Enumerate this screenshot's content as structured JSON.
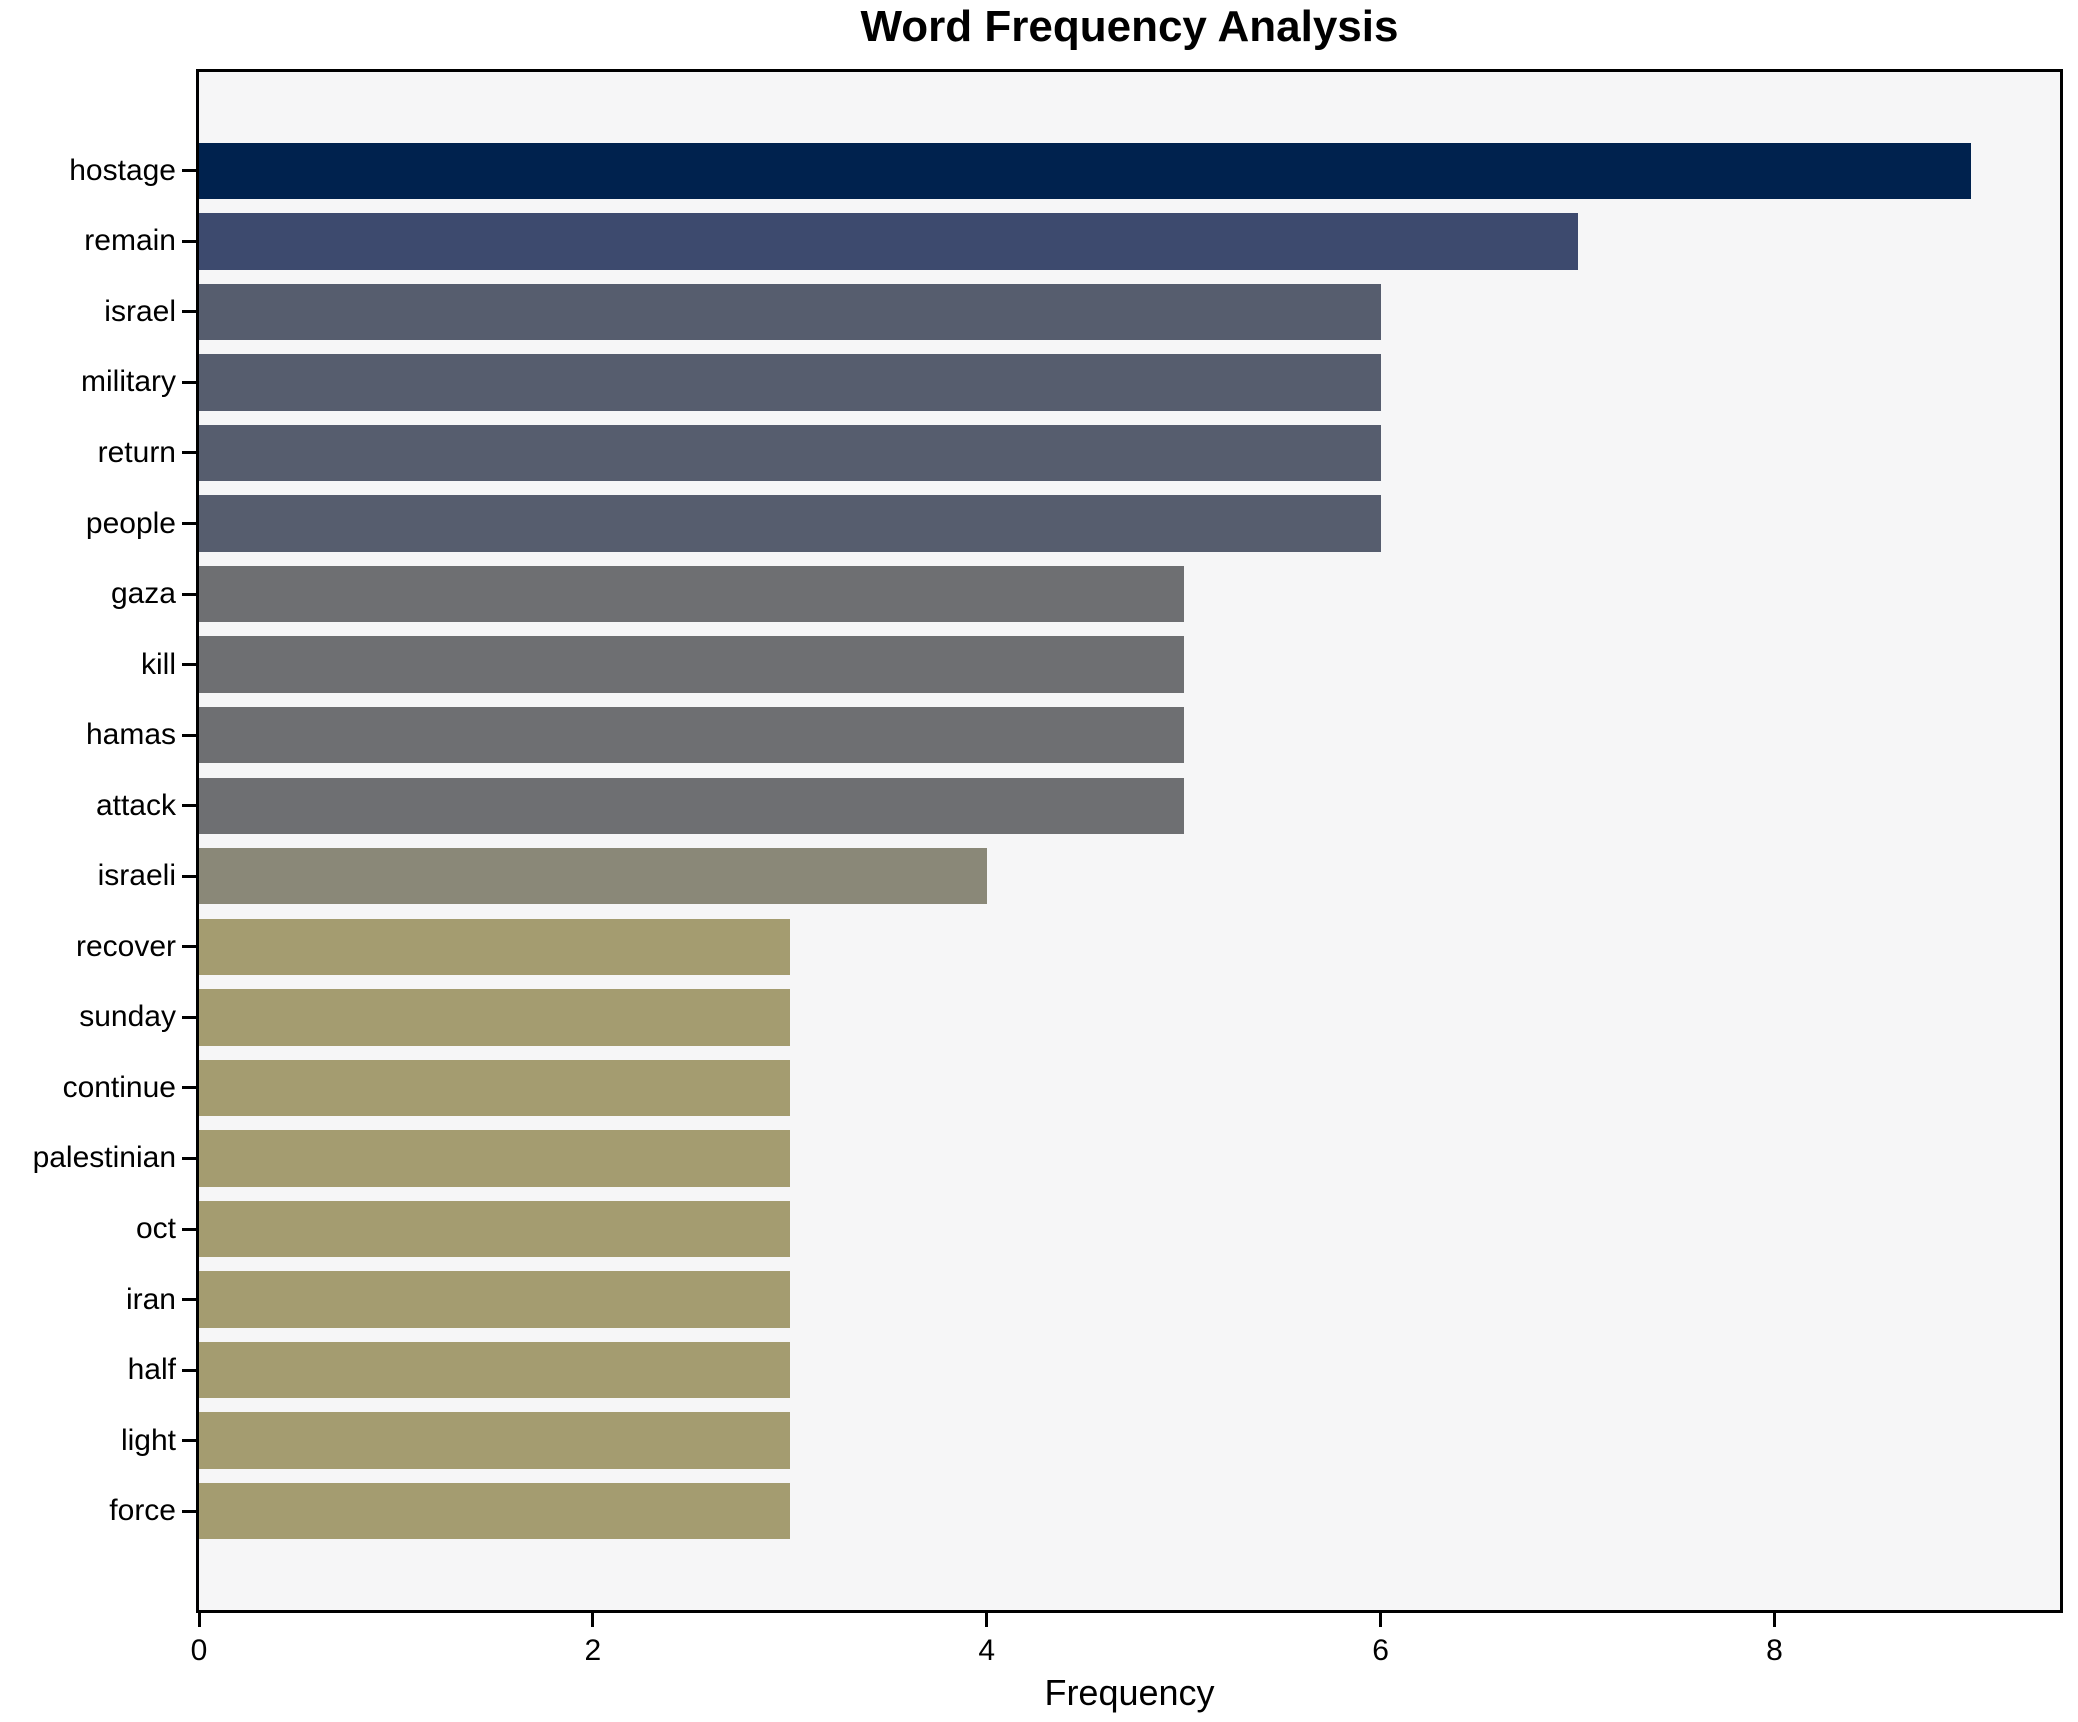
{
  "figure": {
    "background": "#ffffff",
    "plot_background": "#f6f6f7",
    "axis_color": "#000000",
    "text_color": "#000000"
  },
  "chart_data": {
    "type": "bar",
    "orientation": "horizontal",
    "title": "Word Frequency Analysis",
    "xlabel": "Frequency",
    "ylabel": "",
    "categories": [
      "hostage",
      "remain",
      "israel",
      "military",
      "return",
      "people",
      "gaza",
      "kill",
      "hamas",
      "attack",
      "israeli",
      "recover",
      "sunday",
      "continue",
      "palestinian",
      "oct",
      "iran",
      "half",
      "light",
      "force"
    ],
    "values": [
      9,
      7,
      6,
      6,
      6,
      6,
      5,
      5,
      5,
      5,
      4,
      3,
      3,
      3,
      3,
      3,
      3,
      3,
      3,
      3
    ],
    "bar_colors": [
      "#00224e",
      "#3d4a6e",
      "#565d6e",
      "#565d6e",
      "#565d6e",
      "#565d6e",
      "#6e6f72",
      "#6e6f72",
      "#6e6f72",
      "#6e6f72",
      "#8a8878",
      "#a49c70",
      "#a49c70",
      "#a49c70",
      "#a49c70",
      "#a49c70",
      "#a49c70",
      "#a49c70",
      "#a49c70",
      "#a49c70"
    ],
    "xticks": [
      0,
      2,
      4,
      6,
      8
    ],
    "xlim": [
      0,
      9.45
    ],
    "grid": false,
    "legend": false
  }
}
